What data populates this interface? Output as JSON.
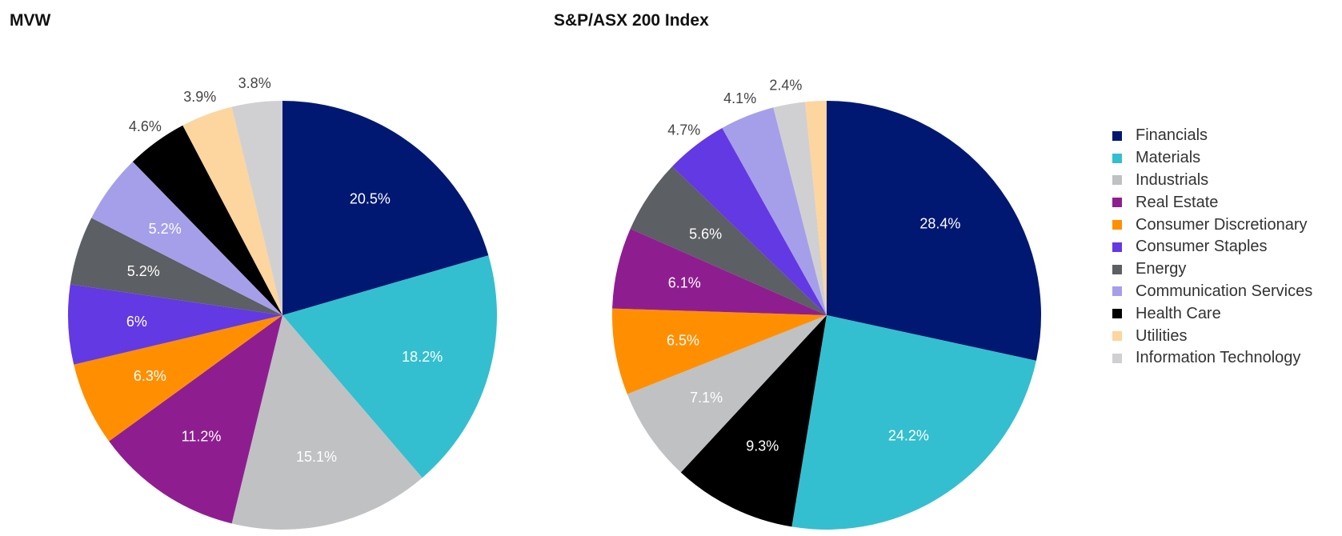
{
  "chart_data": [
    {
      "type": "pie",
      "title": "MVW",
      "slices": [
        {
          "label": "Financials",
          "value": 20.5,
          "display": "20.5%"
        },
        {
          "label": "Materials",
          "value": 18.2,
          "display": "18.2%"
        },
        {
          "label": "Industrials",
          "value": 15.1,
          "display": "15.1%"
        },
        {
          "label": "Real Estate",
          "value": 11.2,
          "display": "11.2%"
        },
        {
          "label": "Consumer Discretionary",
          "value": 6.3,
          "display": "6.3%"
        },
        {
          "label": "Consumer Staples",
          "value": 6.0,
          "display": "6%"
        },
        {
          "label": "Energy",
          "value": 5.2,
          "display": "5.2%"
        },
        {
          "label": "Communication Services",
          "value": 5.2,
          "display": "5.2%"
        },
        {
          "label": "Health Care",
          "value": 4.6,
          "display": "4.6%"
        },
        {
          "label": "Utilities",
          "value": 3.9,
          "display": "3.9%"
        },
        {
          "label": "Information Technology",
          "value": 3.8,
          "display": "3.8%"
        }
      ]
    },
    {
      "type": "pie",
      "title": "S&P/ASX 200 Index",
      "slices": [
        {
          "label": "Financials",
          "value": 28.4,
          "display": "28.4%"
        },
        {
          "label": "Materials",
          "value": 24.2,
          "display": "24.2%"
        },
        {
          "label": "Health Care",
          "value": 9.3,
          "display": "9.3%"
        },
        {
          "label": "Industrials",
          "value": 7.1,
          "display": "7.1%"
        },
        {
          "label": "Consumer Discretionary",
          "value": 6.5,
          "display": "6.5%"
        },
        {
          "label": "Real Estate",
          "value": 6.1,
          "display": "6.1%"
        },
        {
          "label": "Energy",
          "value": 5.6,
          "display": "5.6%"
        },
        {
          "label": "Consumer Staples",
          "value": 4.7,
          "display": "4.7%"
        },
        {
          "label": "Communication Services",
          "value": 4.1,
          "display": "4.1%"
        },
        {
          "label": "Information Technology",
          "value": 2.4,
          "display": "2.4%"
        },
        {
          "label": "Utilities",
          "value": 1.6,
          "display": ""
        }
      ]
    }
  ],
  "legend": [
    {
      "label": "Financials",
      "color": "#001872"
    },
    {
      "label": "Materials",
      "color": "#33BFCF"
    },
    {
      "label": "Industrials",
      "color": "#BFC1C3"
    },
    {
      "label": "Real Estate",
      "color": "#8E1E90"
    },
    {
      "label": "Consumer Discretionary",
      "color": "#FF8F00"
    },
    {
      "label": "Consumer Staples",
      "color": "#6339E3"
    },
    {
      "label": "Energy",
      "color": "#5C5F63"
    },
    {
      "label": "Communication Services",
      "color": "#A59FEA"
    },
    {
      "label": "Health Care",
      "color": "#000000"
    },
    {
      "label": "Utilities",
      "color": "#FDD59E"
    },
    {
      "label": "Information Technology",
      "color": "#D0D0D2"
    }
  ],
  "label_colors": {
    "inside": "#FFFFFF",
    "outside": "#444444"
  }
}
